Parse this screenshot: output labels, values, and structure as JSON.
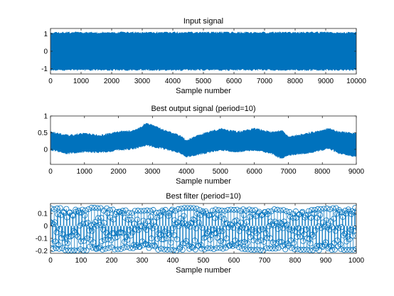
{
  "chart_data": [
    {
      "type": "line",
      "title": "Input signal",
      "xlabel": "Sample number",
      "ylabel": "",
      "xlim": [
        0,
        10000
      ],
      "ylim": [
        -1.3,
        1.3
      ],
      "xticks": [
        0,
        1000,
        2000,
        3000,
        4000,
        5000,
        6000,
        7000,
        8000,
        9000,
        10000
      ],
      "xtick_labels": [
        "0",
        "1000",
        "2000",
        "3000",
        "4000",
        "5000",
        "6000",
        "7000",
        "8000",
        "9000",
        "10000"
      ],
      "yticks": [
        -1,
        0,
        1
      ],
      "ytick_labels": [
        "-1",
        "0",
        "1"
      ],
      "grid": false,
      "color": "#0072BD",
      "series": [
        {
          "x": [
            0,
            10000
          ],
          "envelope_upper": [
            1.12,
            1.12
          ],
          "envelope_lower": [
            -1.12,
            -1.12
          ]
        }
      ]
    },
    {
      "type": "line",
      "title": "Best output signal (period=10)",
      "xlabel": "Sample number",
      "ylabel": "",
      "xlim": [
        0,
        9000
      ],
      "ylim": [
        -0.45,
        1.0
      ],
      "xticks": [
        0,
        1000,
        2000,
        3000,
        4000,
        5000,
        6000,
        7000,
        8000,
        9000
      ],
      "xtick_labels": [
        "0",
        "1000",
        "2000",
        "3000",
        "4000",
        "5000",
        "6000",
        "7000",
        "8000",
        "9000"
      ],
      "yticks": [
        0,
        0.5,
        1
      ],
      "ytick_labels": [
        "0",
        "0.5",
        "1"
      ],
      "grid": false,
      "color": "#0072BD",
      "series": [
        {
          "x": [
            0,
            500,
            1000,
            1500,
            2000,
            2500,
            2800,
            3000,
            3500,
            3800,
            4000,
            4500,
            5000,
            5500,
            6000,
            6500,
            6800,
            7000,
            7500,
            8000,
            8200,
            8500,
            9000
          ],
          "envelope_upper": [
            0.55,
            0.45,
            0.5,
            0.45,
            0.55,
            0.6,
            0.8,
            0.75,
            0.55,
            0.45,
            0.3,
            0.5,
            0.65,
            0.55,
            0.65,
            0.55,
            0.6,
            0.4,
            0.5,
            0.6,
            0.65,
            0.55,
            0.5
          ],
          "envelope_lower": [
            -0.05,
            -0.15,
            -0.1,
            -0.12,
            -0.05,
            0.0,
            0.1,
            0.05,
            -0.05,
            -0.12,
            -0.25,
            -0.15,
            -0.05,
            -0.1,
            -0.05,
            -0.15,
            -0.3,
            -0.2,
            -0.15,
            -0.05,
            0.0,
            -0.15,
            -0.25
          ]
        }
      ]
    },
    {
      "type": "scatter",
      "title": "Best filter (period=10)",
      "xlabel": "Sample number",
      "ylabel": "",
      "xlim": [
        0,
        1000
      ],
      "ylim": [
        -0.22,
        0.18
      ],
      "xticks": [
        0,
        100,
        200,
        300,
        400,
        500,
        600,
        700,
        800,
        900,
        1000
      ],
      "xtick_labels": [
        "0",
        "100",
        "200",
        "300",
        "400",
        "500",
        "600",
        "700",
        "800",
        "900",
        "1000"
      ],
      "yticks": [
        -0.2,
        -0.1,
        0,
        0.1
      ],
      "ytick_labels": [
        "-0.2",
        "-0.1",
        "0",
        "0.1"
      ],
      "grid": false,
      "color": "#0072BD",
      "marker": "circle",
      "stem": true,
      "series": [
        {
          "x": [
            0,
            100,
            200,
            300,
            400,
            500,
            600,
            700,
            800,
            900,
            1000
          ],
          "envelope_upper": [
            0.14,
            0.15,
            0.14,
            0.12,
            0.15,
            0.14,
            0.13,
            0.14,
            0.12,
            0.14,
            0.15
          ],
          "envelope_lower": [
            -0.19,
            -0.2,
            -0.19,
            -0.18,
            -0.2,
            -0.19,
            -0.18,
            -0.2,
            -0.19,
            -0.2,
            -0.19
          ]
        }
      ]
    }
  ]
}
